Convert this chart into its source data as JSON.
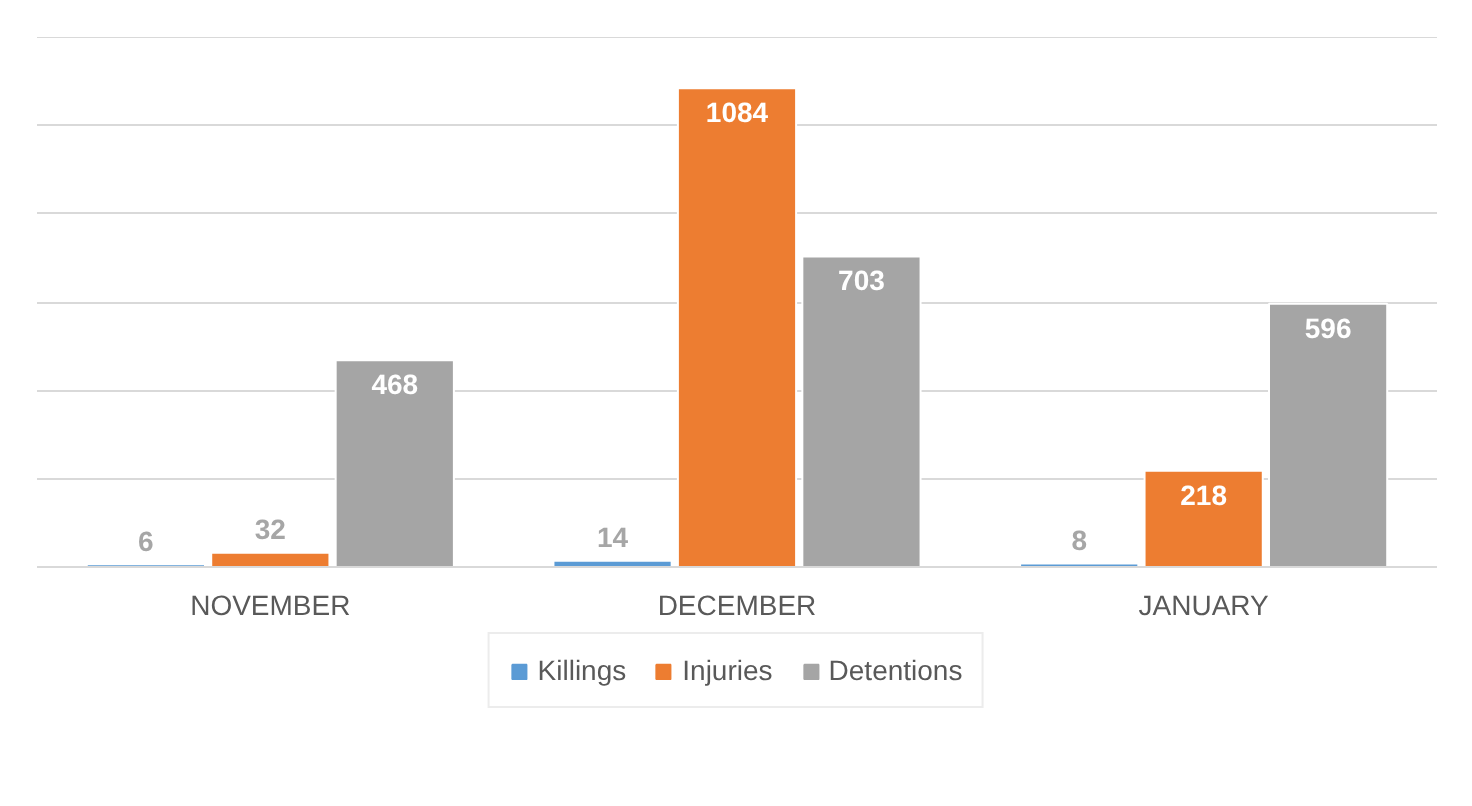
{
  "chart_data": {
    "type": "bar",
    "categories": [
      "NOVEMBER",
      "DECEMBER",
      "JANUARY"
    ],
    "series": [
      {
        "name": "Killings",
        "color": "#5b9bd5",
        "values": [
          6,
          14,
          8
        ]
      },
      {
        "name": "Injuries",
        "color": "#ed7d31",
        "values": [
          32,
          1084,
          218
        ]
      },
      {
        "name": "Detentions",
        "color": "#a5a5a5",
        "values": [
          468,
          703,
          596
        ]
      }
    ],
    "ylim": [
      0,
      1200
    ],
    "yticks": [
      {
        "value": 0,
        "label": null
      },
      {
        "value": 200,
        "label": null
      },
      {
        "value": 400,
        "label": null
      },
      {
        "value": 600,
        "label": null
      },
      {
        "value": 800,
        "label": null
      },
      {
        "value": 1000,
        "label": null
      },
      {
        "value": 1200,
        "label": null
      }
    ],
    "grid": "y",
    "tick_labels": "x",
    "data_labels": true,
    "legend": "bottom"
  }
}
